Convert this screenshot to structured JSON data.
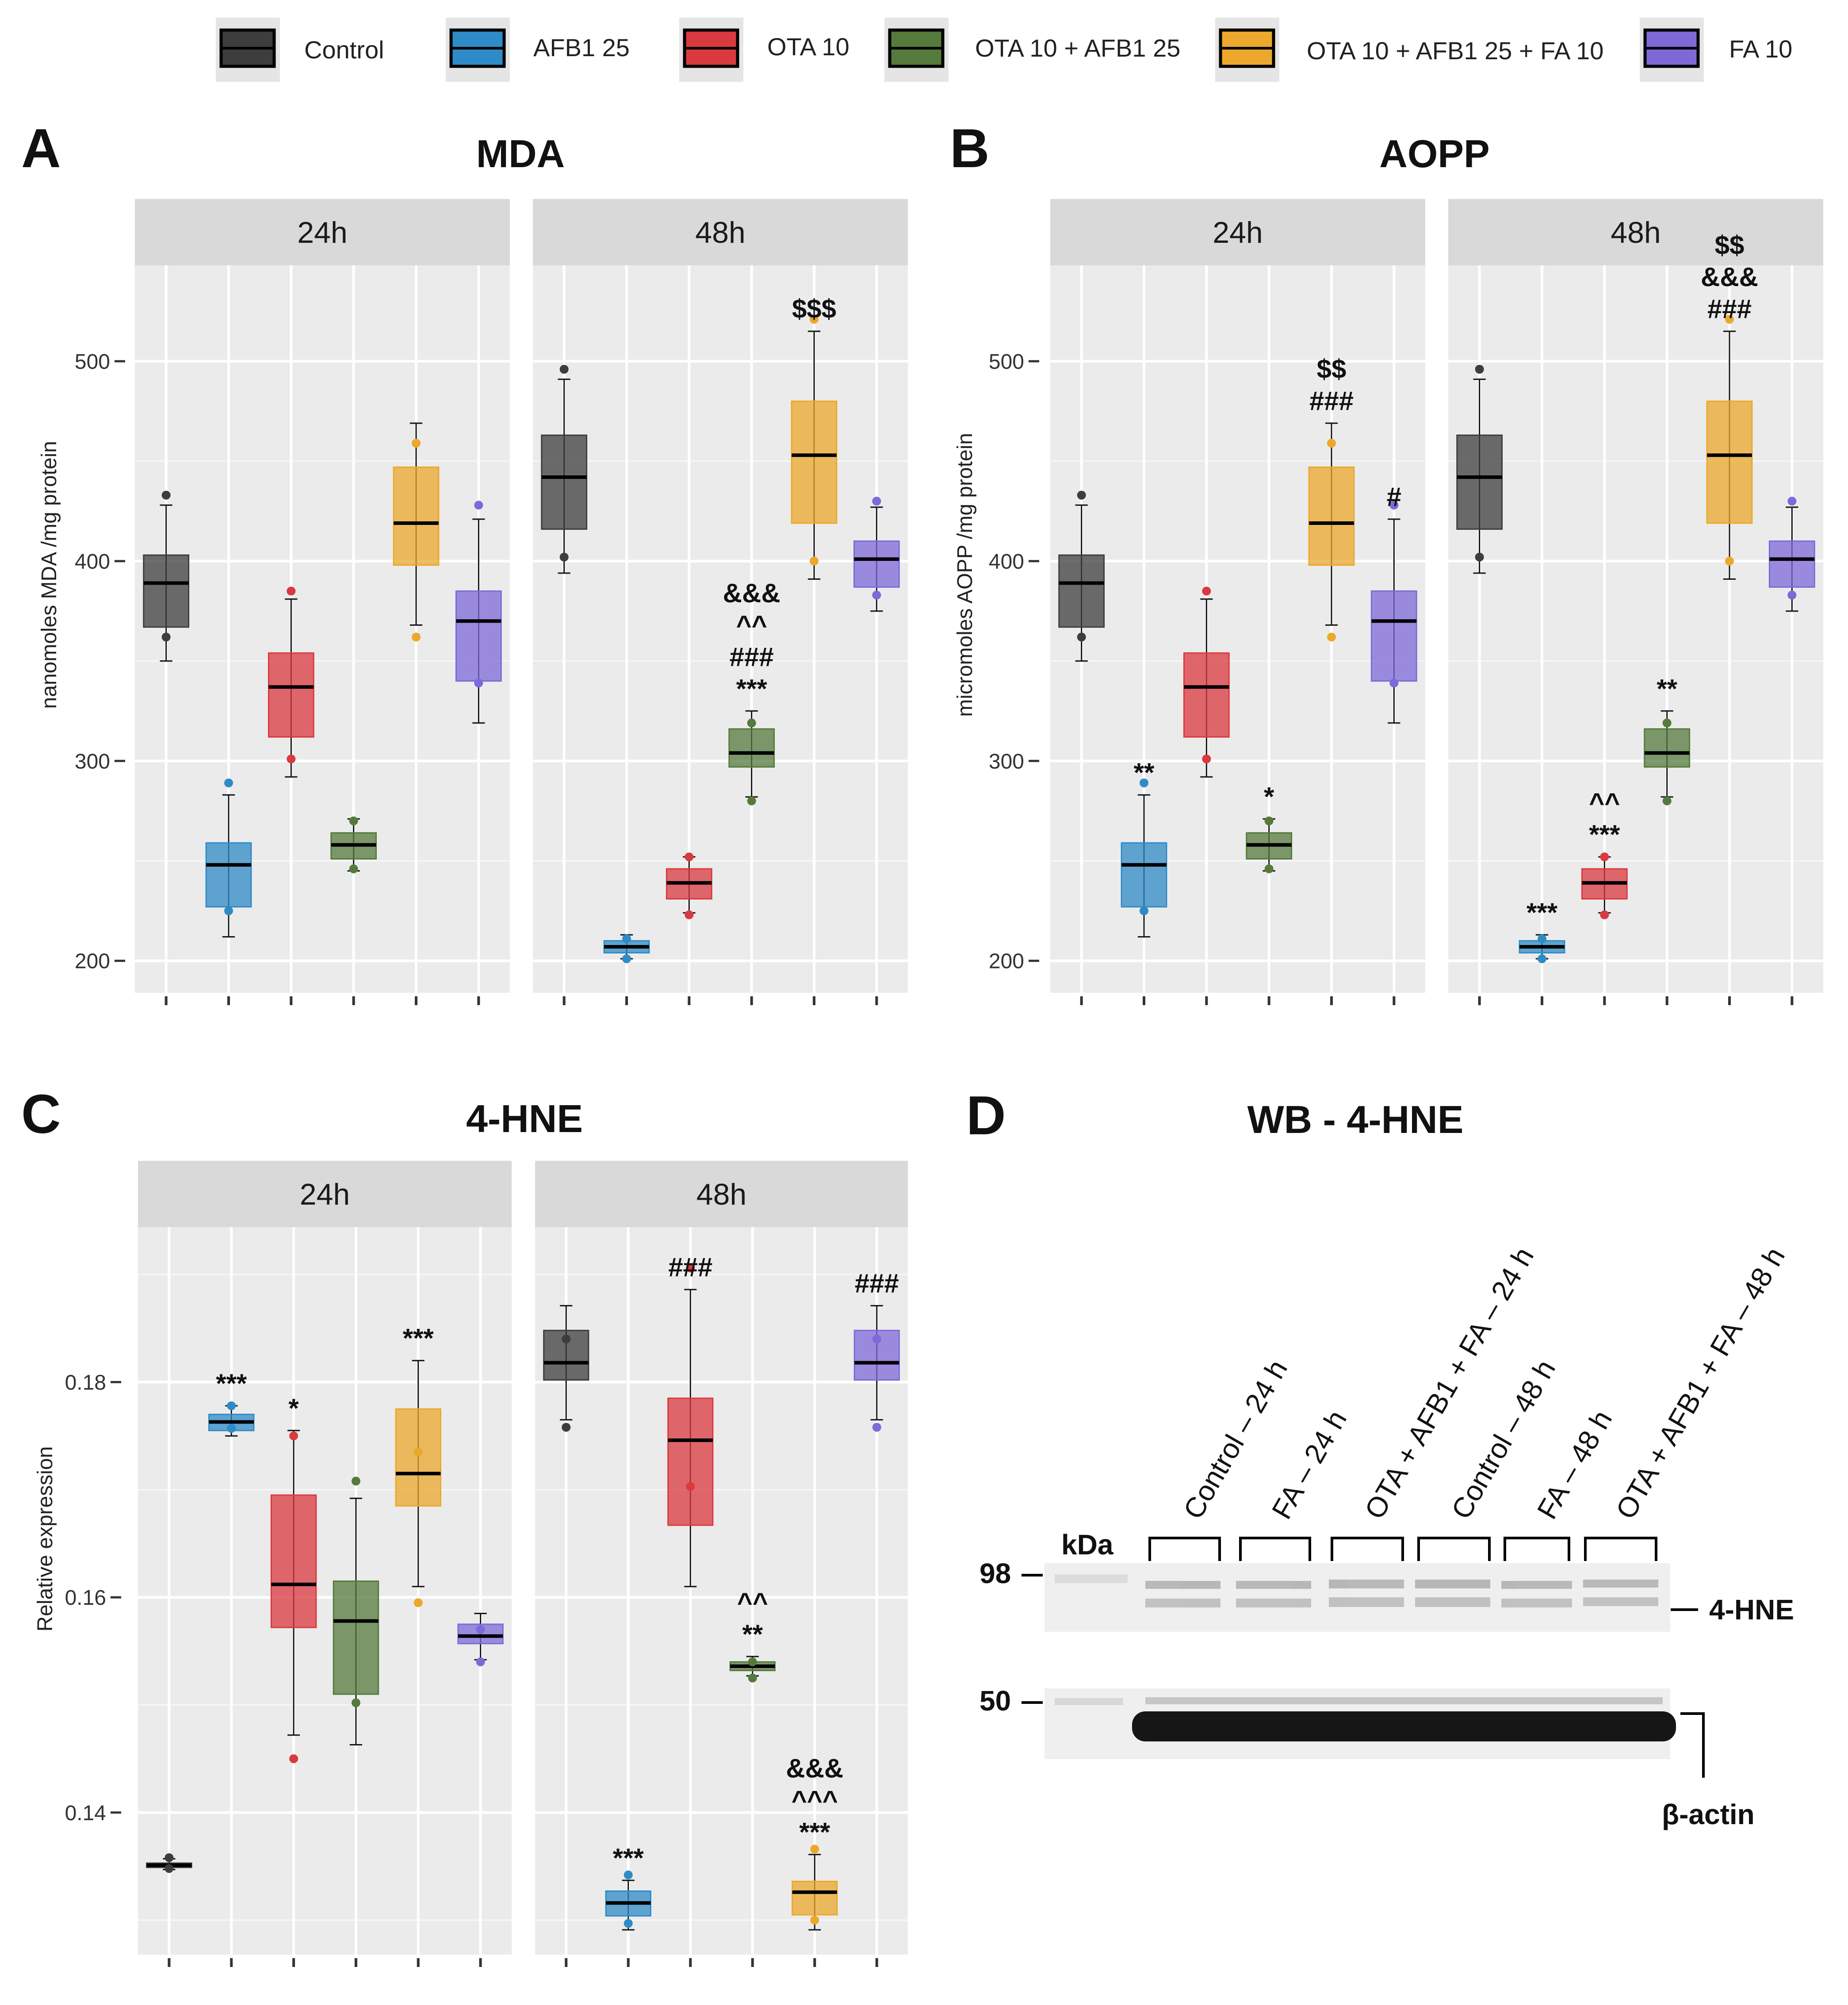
{
  "legend": [
    {
      "label": "Control",
      "color": "#3d3d3d"
    },
    {
      "label": "AFB1 25",
      "color": "#2f8bc7"
    },
    {
      "label": "OTA 10",
      "color": "#d93a3f"
    },
    {
      "label": "OTA 10 + AFB1 25",
      "color": "#557a3c"
    },
    {
      "label": "OTA 10 + AFB1 25 + FA 10",
      "color": "#eba82c"
    },
    {
      "label": "FA 10",
      "color": "#7d6ad8"
    }
  ],
  "chart_data": [
    {
      "type": "boxplot",
      "panel": "A",
      "title": "MDA",
      "ylabel": "nanomoles MDA /mg protein",
      "ylim": [
        184,
        548
      ],
      "yticks": [
        200,
        300,
        400,
        500
      ],
      "facets": [
        {
          "label": "24h",
          "groups": [
            {
              "min": 350,
              "q1": 367,
              "median": 389,
              "q3": 403,
              "max": 428,
              "points": [
                362,
                433
              ],
              "annot": []
            },
            {
              "min": 212,
              "q1": 227,
              "median": 248,
              "q3": 259,
              "max": 283,
              "points": [
                225,
                289
              ],
              "annot": []
            },
            {
              "min": 292,
              "q1": 312,
              "median": 337,
              "q3": 354,
              "max": 381,
              "points": [
                301,
                385
              ],
              "annot": []
            },
            {
              "min": 245,
              "q1": 251,
              "median": 258,
              "q3": 264,
              "max": 271,
              "points": [
                246,
                270
              ],
              "annot": []
            },
            {
              "min": 368,
              "q1": 398,
              "median": 419,
              "q3": 447,
              "max": 469,
              "points": [
                362,
                459
              ],
              "annot": []
            },
            {
              "min": 319,
              "q1": 340,
              "median": 370,
              "q3": 385,
              "max": 421,
              "points": [
                339,
                428
              ],
              "annot": []
            }
          ]
        },
        {
          "label": "48h",
          "groups": [
            {
              "min": 394,
              "q1": 416,
              "median": 442,
              "q3": 463,
              "max": 491,
              "points": [
                402,
                496
              ],
              "annot": []
            },
            {
              "min": 201,
              "q1": 204,
              "median": 207,
              "q3": 210,
              "max": 213,
              "points": [
                201,
                211
              ],
              "annot": []
            },
            {
              "min": 224,
              "q1": 231,
              "median": 239,
              "q3": 246,
              "max": 252,
              "points": [
                223,
                252
              ],
              "annot": []
            },
            {
              "min": 282,
              "q1": 297,
              "median": 304,
              "q3": 316,
              "max": 325,
              "points": [
                280,
                319
              ],
              "annot": [
                "***",
                "###",
                "^^",
                "&&&"
              ]
            },
            {
              "min": 391,
              "q1": 419,
              "median": 453,
              "q3": 480,
              "max": 515,
              "points": [
                400,
                521
              ],
              "annot": [
                "$$$"
              ]
            },
            {
              "min": 375,
              "q1": 387,
              "median": 401,
              "q3": 410,
              "max": 427,
              "points": [
                383,
                430
              ],
              "annot": []
            }
          ]
        }
      ]
    },
    {
      "type": "boxplot",
      "panel": "B",
      "title": "AOPP",
      "ylabel": "micromoles AOPP /mg protein",
      "ylim": [
        184,
        548
      ],
      "yticks": [
        200,
        300,
        400,
        500
      ],
      "facets": [
        {
          "label": "24h",
          "groups": [
            {
              "min": 350,
              "q1": 367,
              "median": 389,
              "q3": 403,
              "max": 428,
              "points": [
                362,
                433
              ],
              "annot": []
            },
            {
              "min": 212,
              "q1": 227,
              "median": 248,
              "q3": 259,
              "max": 283,
              "points": [
                225,
                289
              ],
              "annot": [
                "**"
              ]
            },
            {
              "min": 292,
              "q1": 312,
              "median": 337,
              "q3": 354,
              "max": 381,
              "points": [
                301,
                385
              ],
              "annot": []
            },
            {
              "min": 245,
              "q1": 251,
              "median": 258,
              "q3": 264,
              "max": 271,
              "points": [
                246,
                270
              ],
              "annot": [
                "*"
              ]
            },
            {
              "min": 368,
              "q1": 398,
              "median": 419,
              "q3": 447,
              "max": 469,
              "points": [
                362,
                459
              ],
              "annot": [
                "###",
                "$$"
              ]
            },
            {
              "min": 319,
              "q1": 340,
              "median": 370,
              "q3": 385,
              "max": 421,
              "points": [
                339,
                428
              ],
              "annot": [
                "#"
              ]
            }
          ]
        },
        {
          "label": "48h",
          "groups": [
            {
              "min": 394,
              "q1": 416,
              "median": 442,
              "q3": 463,
              "max": 491,
              "points": [
                402,
                496
              ],
              "annot": []
            },
            {
              "min": 201,
              "q1": 204,
              "median": 207,
              "q3": 210,
              "max": 213,
              "points": [
                201,
                211
              ],
              "annot": [
                "***"
              ]
            },
            {
              "min": 224,
              "q1": 231,
              "median": 239,
              "q3": 246,
              "max": 252,
              "points": [
                223,
                252
              ],
              "annot": [
                "***",
                "^^"
              ]
            },
            {
              "min": 282,
              "q1": 297,
              "median": 304,
              "q3": 316,
              "max": 325,
              "points": [
                280,
                319
              ],
              "annot": [
                "**"
              ]
            },
            {
              "min": 391,
              "q1": 419,
              "median": 453,
              "q3": 480,
              "max": 515,
              "points": [
                400,
                521
              ],
              "annot": [
                "###",
                "&&&",
                "$$"
              ]
            },
            {
              "min": 375,
              "q1": 387,
              "median": 401,
              "q3": 410,
              "max": 427,
              "points": [
                383,
                430
              ],
              "annot": []
            }
          ]
        }
      ]
    },
    {
      "type": "boxplot",
      "panel": "C",
      "title": "4-HNE",
      "ylabel": "Relative expression",
      "ylim": [
        0.1268,
        0.1944
      ],
      "yticks": [
        0.14,
        0.16,
        0.18
      ],
      "yticklabels": [
        "0.14",
        "0.16",
        "0.18"
      ],
      "facets": [
        {
          "label": "24h",
          "groups": [
            {
              "min": 0.1347,
              "q1": 0.1349,
              "median": 0.1351,
              "q3": 0.1353,
              "max": 0.1357,
              "points": [
                0.1348,
                0.1358
              ],
              "annot": []
            },
            {
              "min": 0.175,
              "q1": 0.1755,
              "median": 0.1763,
              "q3": 0.177,
              "max": 0.1778,
              "points": [
                0.1757,
                0.1778
              ],
              "annot": [
                "***"
              ]
            },
            {
              "min": 0.1472,
              "q1": 0.1572,
              "median": 0.1612,
              "q3": 0.1695,
              "max": 0.1755,
              "points": [
                0.145,
                0.175
              ],
              "annot": [
                "*"
              ]
            },
            {
              "min": 0.1463,
              "q1": 0.151,
              "median": 0.1578,
              "q3": 0.1615,
              "max": 0.1692,
              "points": [
                0.1502,
                0.1708
              ],
              "annot": []
            },
            {
              "min": 0.161,
              "q1": 0.1685,
              "median": 0.1715,
              "q3": 0.1775,
              "max": 0.182,
              "points": [
                0.1595,
                0.1735
              ],
              "annot": [
                "***"
              ]
            },
            {
              "min": 0.1542,
              "q1": 0.1557,
              "median": 0.1564,
              "q3": 0.1575,
              "max": 0.1585,
              "points": [
                0.154,
                0.157
              ],
              "annot": []
            }
          ]
        },
        {
          "label": "48h",
          "groups": [
            {
              "min": 0.1765,
              "q1": 0.1802,
              "median": 0.1818,
              "q3": 0.1848,
              "max": 0.1871,
              "points": [
                0.1758,
                0.184
              ],
              "annot": []
            },
            {
              "min": 0.1291,
              "q1": 0.1304,
              "median": 0.1316,
              "q3": 0.1327,
              "max": 0.1337,
              "points": [
                0.1297,
                0.1342
              ],
              "annot": [
                "***"
              ]
            },
            {
              "min": 0.161,
              "q1": 0.1667,
              "median": 0.1746,
              "q3": 0.1785,
              "max": 0.1886,
              "points": [
                0.1703,
                0.1906
              ],
              "annot": [
                "###"
              ]
            },
            {
              "min": 0.1527,
              "q1": 0.1532,
              "median": 0.1536,
              "q3": 0.154,
              "max": 0.1545,
              "points": [
                0.1525,
                0.154
              ],
              "annot": [
                "**",
                "^^"
              ]
            },
            {
              "min": 0.1291,
              "q1": 0.1305,
              "median": 0.1326,
              "q3": 0.1336,
              "max": 0.1361,
              "points": [
                0.13,
                0.1366
              ],
              "annot": [
                "***",
                "^^^",
                "&&&"
              ]
            },
            {
              "min": 0.1765,
              "q1": 0.1802,
              "median": 0.1818,
              "q3": 0.1848,
              "max": 0.1871,
              "points": [
                0.1758,
                0.184
              ],
              "annot": [
                "###"
              ]
            }
          ]
        }
      ]
    }
  ],
  "wb": {
    "panel": "D",
    "title": "WB - 4-HNE",
    "kda_header": "kDa",
    "markers": [
      "98",
      "50"
    ],
    "lanes": [
      "Control – 24 h",
      "FA – 24 h",
      "OTA + AFB1 + FA – 24 h",
      "Control – 48 h",
      "FA – 48 h",
      "OTA + AFB1 + FA – 48 h"
    ],
    "band_labels": [
      "4-HNE",
      "β-actin"
    ]
  }
}
